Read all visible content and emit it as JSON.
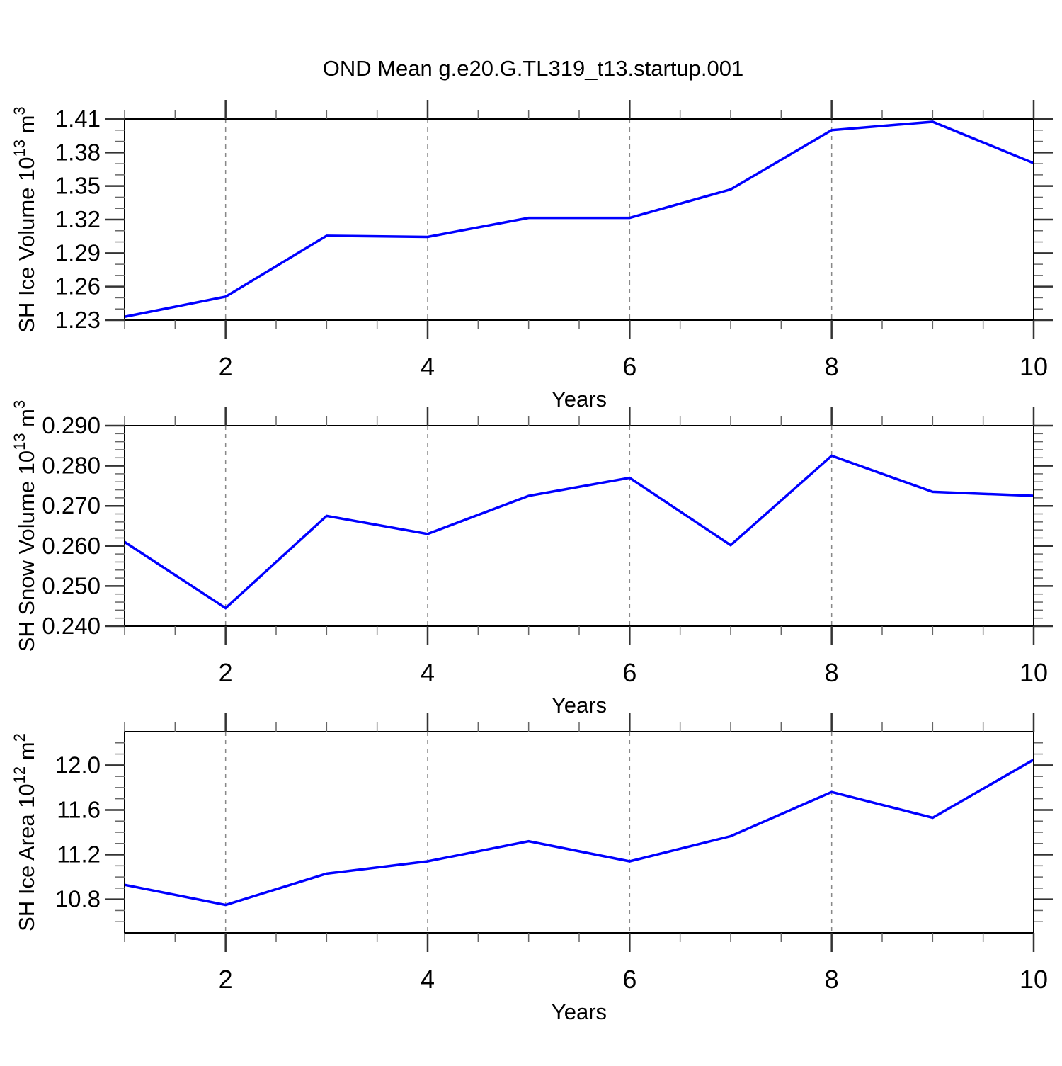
{
  "title": "OND Mean g.e20.G.TL319_t13.startup.001",
  "figure": {
    "line_color": "#0000ff",
    "grid_color": "#888888",
    "axis_color": "#000000",
    "background": "#ffffff"
  },
  "chart_data": [
    {
      "type": "line",
      "id": "sh-ice-volume",
      "ylabel": "SH Ice Volume 10^13 m^3",
      "ylabel_segments": [
        {
          "t": "SH Ice Volume 10"
        },
        {
          "t": "13",
          "sup": true
        },
        {
          "t": " m"
        },
        {
          "t": "3",
          "sup": true
        }
      ],
      "xlabel": "Years",
      "x": [
        1,
        2,
        3,
        4,
        5,
        6,
        7,
        8,
        9,
        10
      ],
      "values": [
        1.233,
        1.251,
        1.3055,
        1.3045,
        1.3215,
        1.3215,
        1.347,
        1.4,
        1.4075,
        1.3705
      ],
      "xlim": [
        1,
        10
      ],
      "ylim": [
        1.23,
        1.41
      ],
      "yticks": [
        1.23,
        1.26,
        1.29,
        1.32,
        1.35,
        1.38,
        1.41
      ],
      "ytick_labels": [
        "1.23",
        "1.26",
        "1.29",
        "1.32",
        "1.35",
        "1.38",
        "1.41"
      ],
      "y_minor_step": 0.01,
      "xticks": [
        2,
        4,
        6,
        8,
        10
      ],
      "xtick_labels": [
        "2",
        "4",
        "6",
        "8",
        "10"
      ],
      "x_minor_step": 0.5,
      "grid_x": [
        2,
        4,
        6,
        8
      ],
      "grid_on": true,
      "legend": null
    },
    {
      "type": "line",
      "id": "sh-snow-volume",
      "ylabel": "SH Snow Volume 10^13 m^3",
      "ylabel_segments": [
        {
          "t": "SH Snow Volume 10"
        },
        {
          "t": "13",
          "sup": true
        },
        {
          "t": " m"
        },
        {
          "t": "3",
          "sup": true
        }
      ],
      "xlabel": "Years",
      "x": [
        1,
        2,
        3,
        4,
        5,
        6,
        7,
        8,
        9,
        10
      ],
      "values": [
        0.261,
        0.2445,
        0.2675,
        0.263,
        0.2725,
        0.277,
        0.2602,
        0.2825,
        0.2735,
        0.2725
      ],
      "xlim": [
        1,
        10
      ],
      "ylim": [
        0.24,
        0.29
      ],
      "yticks": [
        0.24,
        0.25,
        0.26,
        0.27,
        0.28,
        0.29
      ],
      "ytick_labels": [
        "0.240",
        "0.250",
        "0.260",
        "0.270",
        "0.280",
        "0.290"
      ],
      "y_minor_step": 0.002,
      "xticks": [
        2,
        4,
        6,
        8,
        10
      ],
      "xtick_labels": [
        "2",
        "4",
        "6",
        "8",
        "10"
      ],
      "x_minor_step": 0.5,
      "grid_x": [
        2,
        4,
        6,
        8
      ],
      "grid_on": true,
      "legend": null
    },
    {
      "type": "line",
      "id": "sh-ice-area",
      "ylabel": "SH Ice Area 10^12 m^2",
      "ylabel_segments": [
        {
          "t": "SH Ice Area 10"
        },
        {
          "t": "12",
          "sup": true
        },
        {
          "t": " m"
        },
        {
          "t": "2",
          "sup": true
        }
      ],
      "xlabel": "Years",
      "x": [
        1,
        2,
        3,
        4,
        5,
        6,
        7,
        8,
        9,
        10
      ],
      "values": [
        10.93,
        10.75,
        11.03,
        11.14,
        11.32,
        11.14,
        11.365,
        11.76,
        11.53,
        12.05
      ],
      "xlim": [
        1,
        10
      ],
      "ylim": [
        10.5,
        12.3
      ],
      "yticks": [
        10.8,
        11.2,
        11.6,
        12.0
      ],
      "ytick_labels": [
        "10.8",
        "11.2",
        "11.6",
        "12.0"
      ],
      "y_minor_step": 0.1,
      "xticks": [
        2,
        4,
        6,
        8,
        10
      ],
      "xtick_labels": [
        "2",
        "4",
        "6",
        "8",
        "10"
      ],
      "x_minor_step": 0.5,
      "grid_x": [
        2,
        4,
        6,
        8
      ],
      "grid_on": true,
      "legend": null
    }
  ]
}
